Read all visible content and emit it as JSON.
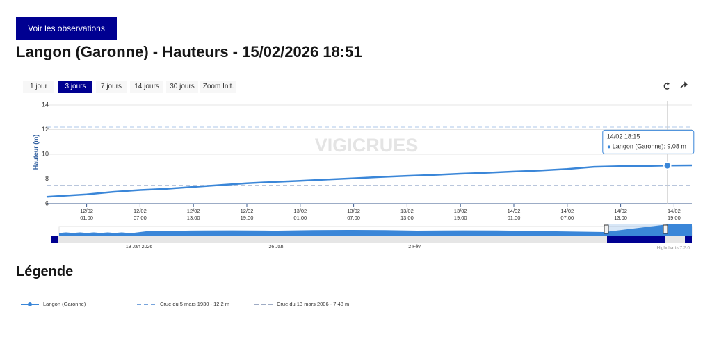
{
  "button": "Voir les observations",
  "title": "Langon (Garonne) - Hauteurs - 15/02/2026 18:51",
  "range_buttons": [
    "1 jour",
    "3 jours",
    "7 jours",
    "14 jours",
    "30 jours",
    "Zoom Init."
  ],
  "selected_range": 1,
  "legend_title": "Légende",
  "chart_data": {
    "type": "line",
    "y_label": "Hauteur (m)",
    "watermark": "VIGICRUES",
    "x": [
      "11/02 20:30",
      "12/02 01:00",
      "12/02 04:00",
      "12/02 07:00",
      "12/02 10:00",
      "12/02 13:00",
      "12/02 16:00",
      "12/02 19:00",
      "12/02 22:00",
      "13/02 01:00",
      "13/02 04:00",
      "13/02 07:00",
      "13/02 10:00",
      "13/02 13:00",
      "13/02 16:00",
      "13/02 19:00",
      "13/02 22:00",
      "14/02 01:00",
      "14/02 04:00",
      "14/02 07:00",
      "14/02 10:00",
      "14/02 13:00",
      "14/02 16:00",
      "14/02 18:15",
      "14/02 21:00"
    ],
    "series": [
      {
        "name": "Langon (Garonne)",
        "color": "#3a86d8",
        "values": [
          6.55,
          6.75,
          6.95,
          7.1,
          7.2,
          7.35,
          7.5,
          7.65,
          7.75,
          7.85,
          7.95,
          8.05,
          8.15,
          8.25,
          8.32,
          8.42,
          8.5,
          8.6,
          8.68,
          8.8,
          8.98,
          9.03,
          9.05,
          9.08,
          9.1
        ]
      }
    ],
    "xlim": [
      "11/02 20:30",
      "14/02 21:00"
    ],
    "xticks": [
      "12/02 01:00",
      "12/02 07:00",
      "12/02 13:00",
      "12/02 19:00",
      "13/02 01:00",
      "13/02 07:00",
      "13/02 13:00",
      "13/02 19:00",
      "14/02 01:00",
      "14/02 07:00",
      "14/02 13:00",
      "14/02 19:00"
    ],
    "ylim": [
      6,
      14
    ],
    "yticks": [
      6,
      8,
      10,
      12,
      14
    ],
    "grid": true,
    "plot_lines": [
      {
        "value": 12.2,
        "label": "Crue du 5 mars 1930 - 12.2 m",
        "color": "#c9daf0"
      },
      {
        "value": 7.48,
        "label": "Crue du 13 mars 2006 - 7.48 m",
        "color": "#b9c6dc"
      }
    ],
    "tooltip": {
      "x": "14/02 18:15",
      "text": "Langon (Garonne): 9,08 m"
    },
    "navigator_labels": [
      "19 Jan 2026",
      "26 Jan",
      "2 Fév"
    ],
    "credits": "Highcharts 7.2.0"
  }
}
